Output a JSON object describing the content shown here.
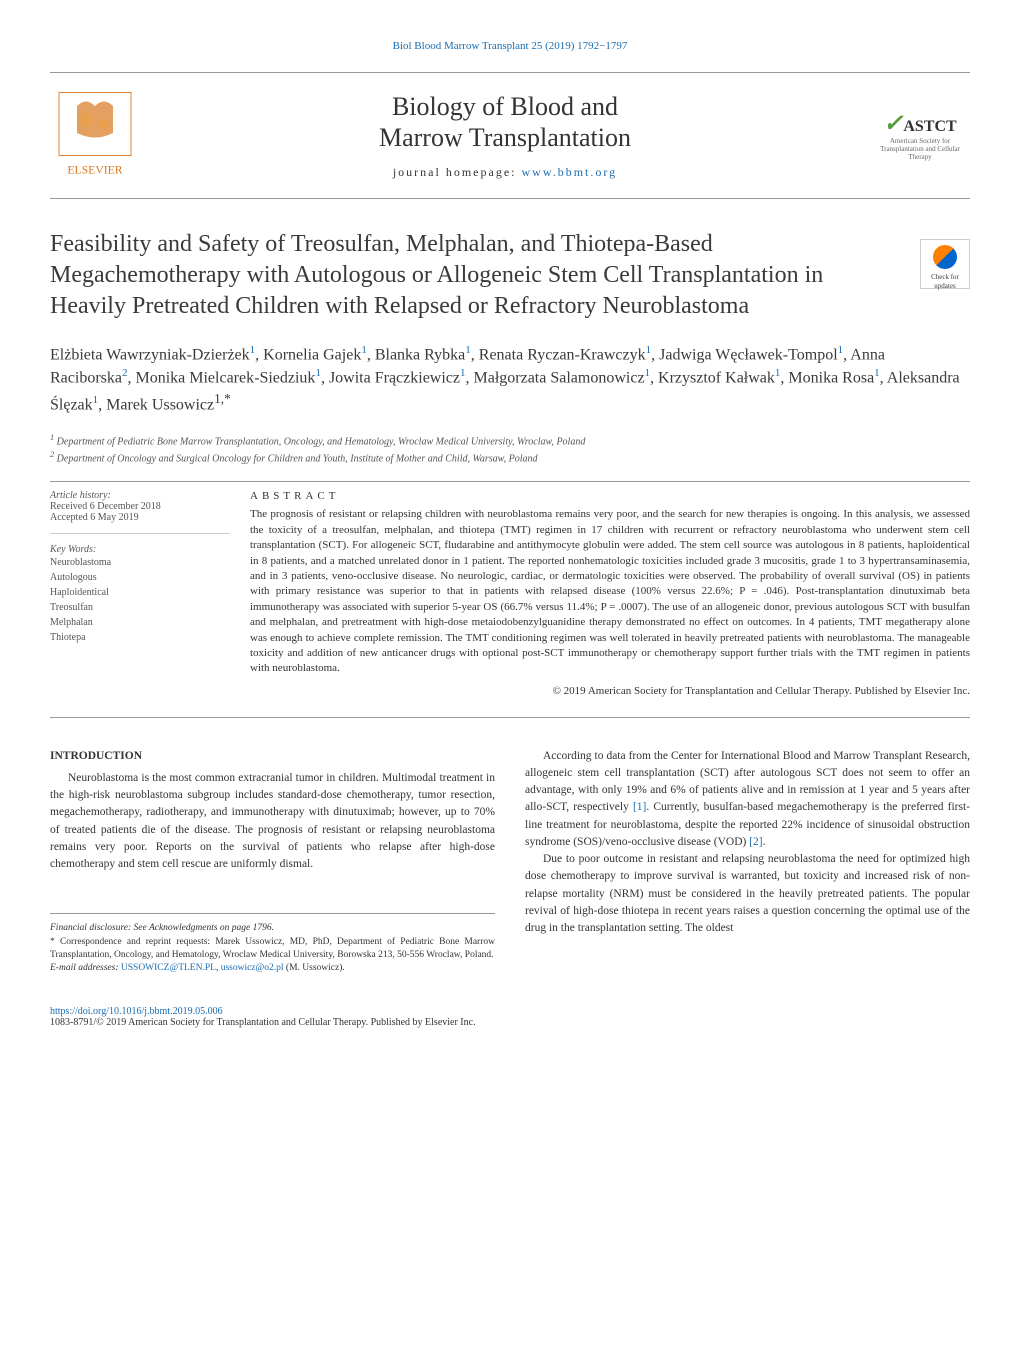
{
  "header": {
    "citation_link": "Biol Blood Marrow Transplant 25 (2019) 1792−1797",
    "journal_title_line1": "Biology of Blood and",
    "journal_title_line2": "Marrow Transplantation",
    "homepage_label": "journal homepage: ",
    "homepage_url": "www.bbmt.org",
    "elsevier_text": "ELSEVIER",
    "astct_name": "ASTCT",
    "astct_subtitle": "American Society for Transplantation and Cellular Therapy"
  },
  "article": {
    "title": "Feasibility and Safety of Treosulfan, Melphalan, and Thiotepa-Based Megachemotherapy with Autologous or Allogeneic Stem Cell Transplantation in Heavily Pretreated Children with Relapsed or Refractory Neuroblastoma",
    "check_updates": "Check for updates",
    "authors_html": "Elżbieta Wawrzyniak-Dzierżek<sup>1</sup>, Kornelia Gajek<sup>1</sup>, Blanka Rybka<sup>1</sup>, Renata Ryczan-Krawczyk<sup>1</sup>, Jadwiga Węcławek-Tompol<sup>1</sup>, Anna Raciborska<sup>2</sup>, Monika Mielcarek-Siedziuk<sup>1</sup>, Jowita Frączkiewicz<sup>1</sup>, Małgorzata Salamonowicz<sup>1</sup>, Krzysztof Kałwak<sup>1</sup>, Monika Rosa<sup>1</sup>, Aleksandra Ślęzak<sup>1</sup>, Marek Ussowicz<sup>1,*</sup>",
    "affiliations": [
      "Department of Pediatric Bone Marrow Transplantation, Oncology, and Hematology, Wroclaw Medical University, Wroclaw, Poland",
      "Department of Oncology and Surgical Oncology for Children and Youth, Institute of Mother and Child, Warsaw, Poland"
    ]
  },
  "meta": {
    "history_label": "Article history:",
    "received": "Received 6 December 2018",
    "accepted": "Accepted 6 May 2019",
    "keywords_label": "Key Words:",
    "keywords": [
      "Neuroblastoma",
      "Autologous",
      "Haploidentical",
      "Treosulfan",
      "Melphalan",
      "Thiotepa"
    ]
  },
  "abstract": {
    "heading": "ABSTRACT",
    "text": "The prognosis of resistant or relapsing children with neuroblastoma remains very poor, and the search for new therapies is ongoing. In this analysis, we assessed the toxicity of a treosulfan, melphalan, and thiotepa (TMT) regimen in 17 children with recurrent or refractory neuroblastoma who underwent stem cell transplantation (SCT). For allogeneic SCT, fludarabine and antithymocyte globulin were added. The stem cell source was autologous in 8 patients, haploidentical in 8 patients, and a matched unrelated donor in 1 patient. The reported nonhematologic toxicities included grade 3 mucositis, grade 1 to 3 hypertransaminasemia, and in 3 patients, veno-occlusive disease. No neurologic, cardiac, or dermatologic toxicities were observed. The probability of overall survival (OS) in patients with primary resistance was superior to that in patients with relapsed disease (100% versus 22.6%; P = .046). Post-transplantation dinutuximab beta immunotherapy was associated with superior 5-year OS (66.7% versus 11.4%; P = .0007). The use of an allogeneic donor, previous autologous SCT with busulfan and melphalan, and pretreatment with high-dose metaiodobenzylguanidine therapy demonstrated no effect on outcomes. In 4 patients, TMT megatherapy alone was enough to achieve complete remission. The TMT conditioning regimen was well tolerated in heavily pretreated patients with neuroblastoma. The manageable toxicity and addition of new anticancer drugs with optional post-SCT immunotherapy or chemotherapy support further trials with the TMT regimen in patients with neuroblastoma.",
    "copyright": "© 2019 American Society for Transplantation and Cellular Therapy. Published by Elsevier Inc."
  },
  "body": {
    "intro_heading": "INTRODUCTION",
    "col1_p1": "Neuroblastoma is the most common extracranial tumor in children. Multimodal treatment in the high-risk neuroblastoma subgroup includes standard-dose chemotherapy, tumor resection, megachemotherapy, radiotherapy, and immunotherapy with dinutuximab; however, up to 70% of treated patients die of the disease. The prognosis of resistant or relapsing neuroblastoma remains very poor. Reports on the survival of patients who relapse after high-dose chemotherapy and stem cell rescue are uniformly dismal.",
    "col2_p1": "According to data from the Center for International Blood and Marrow Transplant Research, allogeneic stem cell transplantation (SCT) after autologous SCT does not seem to offer an advantage, with only 19% and 6% of patients alive and in remission at 1 year and 5 years after allo-SCT, respectively ",
    "col2_ref1": "[1]",
    "col2_p1b": ". Currently, busulfan-based megachemotherapy is the preferred first-line treatment for neuroblastoma, despite the reported 22% incidence of sinusoidal obstruction syndrome (SOS)/veno-occlusive disease (VOD) ",
    "col2_ref2": "[2]",
    "col2_p1c": ".",
    "col2_p2": "Due to poor outcome in resistant and relapsing neuroblastoma the need for optimized high dose chemotherapy to improve survival is warranted, but toxicity and increased risk of non-relapse mortality (NRM) must be considered in the heavily pretreated patients. The popular revival of high-dose thiotepa in recent years raises a question concerning the optimal use of the drug in the transplantation setting. The oldest"
  },
  "footnotes": {
    "financial": "Financial disclosure: See Acknowledgments on page 1796.",
    "correspondence": "* Correspondence and reprint requests: Marek Ussowicz, MD, PhD, Department of Pediatric Bone Marrow Transplantation, Oncology, and Hematology, Wroclaw Medical University, Borowska 213, 50-556 Wroclaw, Poland.",
    "email_label": "E-mail addresses: ",
    "email1": "USSOWICZ@TLEN.PL",
    "email2": "ussowicz@o2.pl",
    "email_name": " (M. Ussowicz)."
  },
  "footer": {
    "doi": "https://doi.org/10.1016/j.bbmt.2019.05.006",
    "issn_copyright": "1083-8791/© 2019 American Society for Transplantation and Cellular Therapy. Published by Elsevier Inc."
  },
  "colors": {
    "link_blue": "#1a6cb0",
    "text_dark": "#333333",
    "border_gray": "#999999",
    "astct_green": "#5a9e3c"
  }
}
